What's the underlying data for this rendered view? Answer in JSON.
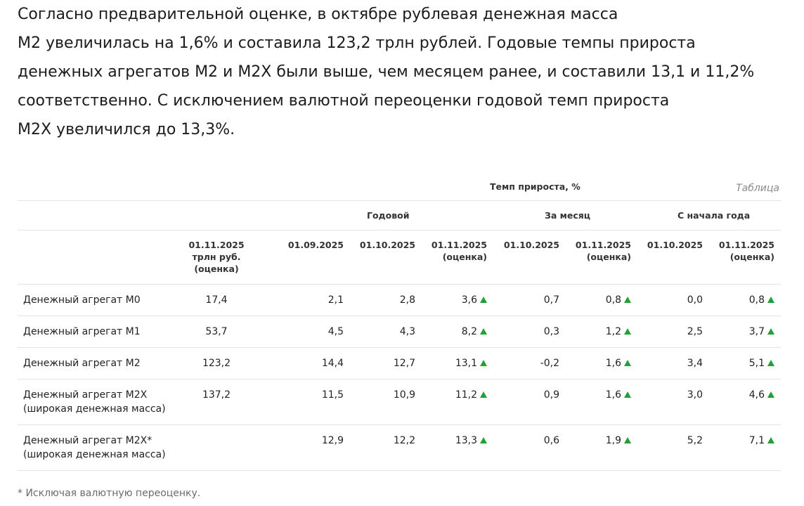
{
  "intro": {
    "lines": [
      "Согласно предварительной оценке, в октябре рублевая денежная масса",
      "М2 увеличилась на 1,6% и составила 123,2 трлн рублей. Годовые темпы прироста",
      "денежных агрегатов М2 и М2Х были выше, чем месяцем ранее, и составили 13,1 и 11,2%",
      "соответственно. С исключением валютной переоценки годовой темп прироста",
      "М2Х увеличился до 13,3%."
    ]
  },
  "table": {
    "label": "Таблица",
    "growth_header": "Темп прироста, %",
    "groups": [
      "Годовой",
      "За месяц",
      "С начала года"
    ],
    "columns": [
      [
        "01.11.2025",
        "трлн руб.",
        "(оценка)"
      ],
      [
        "01.09.2025"
      ],
      [
        "01.10.2025"
      ],
      [
        "01.11.2025",
        "(оценка)"
      ],
      [
        "01.10.2025"
      ],
      [
        "01.11.2025",
        "(оценка)"
      ],
      [
        "01.10.2025"
      ],
      [
        "01.11.2025",
        "(оценка)"
      ]
    ],
    "rows": [
      {
        "name": [
          "Денежный агрегат М0"
        ],
        "values": [
          "17,4",
          "2,1",
          "2,8",
          "3,6",
          "0,7",
          "0,8",
          "0,0",
          "0,8"
        ]
      },
      {
        "name": [
          "Денежный агрегат М1"
        ],
        "values": [
          "53,7",
          "4,5",
          "4,3",
          "8,2",
          "0,3",
          "1,2",
          "2,5",
          "3,7"
        ]
      },
      {
        "name": [
          "Денежный агрегат М2"
        ],
        "values": [
          "123,2",
          "14,4",
          "12,7",
          "13,1",
          "-0,2",
          "1,6",
          "3,4",
          "5,1"
        ]
      },
      {
        "name": [
          "Денежный агрегат М2Х",
          "(широкая денежная масса)"
        ],
        "values": [
          "137,2",
          "11,5",
          "10,9",
          "11,2",
          "0,9",
          "1,6",
          "3,0",
          "4,6"
        ]
      },
      {
        "name": [
          "Денежный агрегат М2Х*",
          "(широкая денежная масса)"
        ],
        "values": [
          "",
          "12,9",
          "12,2",
          "13,3",
          "0,6",
          "1,9",
          "5,2",
          "7,1"
        ]
      }
    ],
    "up_indicator_color": "#21a038"
  },
  "footnote": "* Исключая валютную переоценку."
}
